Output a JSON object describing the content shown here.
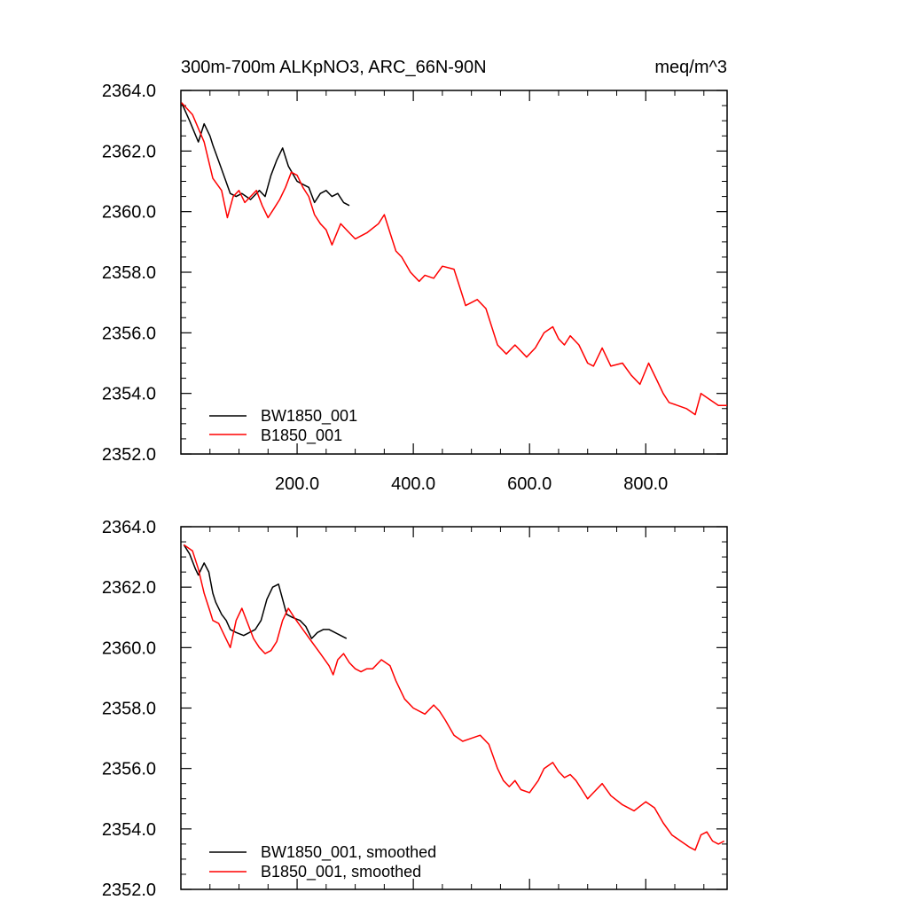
{
  "chart_data": [
    {
      "type": "line",
      "title_left": "300m-700m ALKpNO3, ARC_66N-90N",
      "title_right": "meq/m^3",
      "xlim": [
        0,
        940
      ],
      "ylim": [
        2352,
        2364
      ],
      "xticks": [
        200,
        400,
        600,
        800
      ],
      "xtick_labels": [
        "200.0",
        "400.0",
        "600.0",
        "800.0"
      ],
      "yticks": [
        2352,
        2354,
        2356,
        2358,
        2360,
        2362,
        2364
      ],
      "ytick_labels": [
        "2352.0",
        "2354.0",
        "2356.0",
        "2358.0",
        "2360.0",
        "2362.0",
        "2364.0"
      ],
      "show_xtick_labels": true,
      "legend": [
        "BW1850_001",
        "B1850_001"
      ],
      "series": [
        {
          "name": "BW1850_001",
          "color": "#000000",
          "x": [
            1,
            15,
            30,
            40,
            50,
            55,
            70,
            85,
            95,
            105,
            120,
            135,
            145,
            155,
            165,
            175,
            185,
            200,
            210,
            220,
            230,
            240,
            250,
            260,
            270,
            280,
            290
          ],
          "y": [
            2363.6,
            2363.0,
            2362.3,
            2362.9,
            2362.5,
            2362.2,
            2361.4,
            2360.6,
            2360.5,
            2360.6,
            2360.4,
            2360.7,
            2360.5,
            2361.2,
            2361.7,
            2362.1,
            2361.5,
            2361.0,
            2360.9,
            2360.8,
            2360.3,
            2360.6,
            2360.7,
            2360.5,
            2360.6,
            2360.3,
            2360.2
          ]
        },
        {
          "name": "B1850_001",
          "color": "#ff0000",
          "x": [
            1,
            20,
            40,
            55,
            70,
            80,
            90,
            100,
            110,
            120,
            130,
            140,
            150,
            160,
            170,
            180,
            190,
            200,
            210,
            220,
            230,
            240,
            250,
            260,
            275,
            290,
            300,
            320,
            340,
            350,
            360,
            370,
            380,
            395,
            410,
            420,
            435,
            450,
            470,
            480,
            490,
            500,
            510,
            525,
            545,
            560,
            575,
            595,
            610,
            625,
            640,
            650,
            660,
            670,
            685,
            700,
            710,
            725,
            740,
            760,
            775,
            790,
            805,
            820,
            830,
            840,
            855,
            870,
            885,
            895,
            910,
            925,
            940
          ],
          "y": [
            2363.6,
            2363.2,
            2362.3,
            2361.1,
            2360.7,
            2359.8,
            2360.5,
            2360.7,
            2360.3,
            2360.5,
            2360.7,
            2360.2,
            2359.8,
            2360.1,
            2360.4,
            2360.8,
            2361.3,
            2361.2,
            2360.8,
            2360.5,
            2359.9,
            2359.6,
            2359.4,
            2358.9,
            2359.6,
            2359.3,
            2359.1,
            2359.3,
            2359.6,
            2359.9,
            2359.3,
            2358.7,
            2358.5,
            2358.0,
            2357.7,
            2357.9,
            2357.8,
            2358.2,
            2358.1,
            2357.5,
            2356.9,
            2357.0,
            2357.1,
            2356.8,
            2355.6,
            2355.3,
            2355.6,
            2355.2,
            2355.5,
            2356.0,
            2356.2,
            2355.8,
            2355.6,
            2355.9,
            2355.6,
            2355.0,
            2354.9,
            2355.5,
            2354.9,
            2355.0,
            2354.6,
            2354.3,
            2355.0,
            2354.4,
            2354.0,
            2353.7,
            2353.6,
            2353.5,
            2353.3,
            2354.0,
            2353.8,
            2353.6,
            2353.6
          ]
        }
      ]
    },
    {
      "type": "line",
      "xlim": [
        0,
        940
      ],
      "ylim": [
        2352,
        2364
      ],
      "xticks": [
        200,
        400,
        600,
        800
      ],
      "xtick_labels": [],
      "yticks": [
        2352,
        2354,
        2356,
        2358,
        2360,
        2362,
        2364
      ],
      "ytick_labels": [
        "2352.0",
        "2354.0",
        "2356.0",
        "2358.0",
        "2360.0",
        "2362.0",
        "2364.0"
      ],
      "show_xtick_labels": false,
      "legend": [
        "BW1850_001, smoothed",
        "B1850_001, smoothed"
      ],
      "series": [
        {
          "name": "BW1850_001, smoothed",
          "color": "#000000",
          "x": [
            5,
            15,
            25,
            30,
            40,
            48,
            55,
            60,
            70,
            78,
            85,
            95,
            108,
            118,
            128,
            138,
            148,
            158,
            168,
            175,
            182,
            192,
            205,
            215,
            225,
            235,
            245,
            255,
            265,
            275,
            285
          ],
          "y": [
            2363.4,
            2363.1,
            2362.6,
            2362.4,
            2362.8,
            2362.5,
            2361.8,
            2361.5,
            2361.1,
            2360.9,
            2360.6,
            2360.5,
            2360.4,
            2360.5,
            2360.6,
            2360.9,
            2361.6,
            2362.0,
            2362.1,
            2361.6,
            2361.1,
            2361.0,
            2360.9,
            2360.7,
            2360.3,
            2360.5,
            2360.6,
            2360.6,
            2360.5,
            2360.4,
            2360.3
          ]
        },
        {
          "name": "B1850_001, smoothed",
          "color": "#ff0000",
          "x": [
            5,
            20,
            30,
            40,
            50,
            55,
            65,
            75,
            85,
            95,
            105,
            115,
            125,
            135,
            145,
            155,
            165,
            175,
            185,
            195,
            210,
            225,
            240,
            255,
            262,
            270,
            280,
            290,
            300,
            310,
            320,
            330,
            345,
            360,
            370,
            385,
            400,
            420,
            435,
            445,
            455,
            470,
            485,
            500,
            515,
            530,
            545,
            555,
            565,
            575,
            585,
            600,
            615,
            625,
            640,
            650,
            660,
            670,
            680,
            690,
            700,
            710,
            725,
            740,
            760,
            780,
            800,
            815,
            830,
            845,
            860,
            875,
            885,
            895,
            905,
            915,
            925,
            935
          ],
          "y": [
            2363.4,
            2363.2,
            2362.6,
            2361.8,
            2361.2,
            2360.9,
            2360.8,
            2360.4,
            2360.0,
            2360.9,
            2361.3,
            2360.8,
            2360.3,
            2360.0,
            2359.8,
            2359.9,
            2360.2,
            2360.9,
            2361.3,
            2361.0,
            2360.6,
            2360.2,
            2359.8,
            2359.4,
            2359.1,
            2359.6,
            2359.8,
            2359.5,
            2359.3,
            2359.2,
            2359.3,
            2359.3,
            2359.6,
            2359.4,
            2358.9,
            2358.3,
            2358.0,
            2357.8,
            2358.1,
            2357.9,
            2357.6,
            2357.1,
            2356.9,
            2357.0,
            2357.1,
            2356.8,
            2356.0,
            2355.6,
            2355.4,
            2355.6,
            2355.3,
            2355.2,
            2355.6,
            2356.0,
            2356.2,
            2355.9,
            2355.7,
            2355.8,
            2355.6,
            2355.3,
            2355.0,
            2355.2,
            2355.5,
            2355.1,
            2354.8,
            2354.6,
            2354.9,
            2354.7,
            2354.2,
            2353.8,
            2353.6,
            2353.4,
            2353.3,
            2353.8,
            2353.9,
            2353.6,
            2353.5,
            2353.6
          ]
        }
      ]
    }
  ]
}
